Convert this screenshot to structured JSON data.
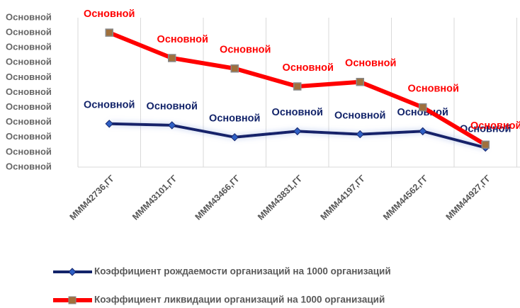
{
  "chart_data": {
    "type": "line",
    "categories": [
      "MMM42736,ГГ",
      "MMM43101,ГГ",
      "MMM43466,ГГ",
      "MMM43831,ГГ",
      "MMM44197,ГГ",
      "MMM44562,ГГ",
      "MMM44927,ГГ"
    ],
    "series": [
      {
        "name": "Коэффициент рождаемости организаций на 1000 организаций",
        "color": "#13246a",
        "marker_color": "#2f5fc4",
        "marker": "diamond",
        "values": [
          2.9,
          2.8,
          2.0,
          2.4,
          2.2,
          2.4,
          1.3
        ],
        "value_labels": [
          "Основной",
          "Основной",
          "Основной",
          "Основной",
          "Основной",
          "Основной",
          "Основной"
        ]
      },
      {
        "name": "Коэффициент ликвидации организаций на 1000 организаций",
        "color": "#ff0000",
        "marker_color": "#a0703c",
        "marker": "square",
        "values": [
          9.0,
          7.3,
          6.6,
          5.4,
          5.7,
          4.0,
          1.5
        ],
        "value_labels": [
          "Основной",
          "Основной",
          "Основной",
          "Основной",
          "Основной",
          "Основной",
          "Основной"
        ]
      }
    ],
    "ylim": [
      0,
      10
    ],
    "yticks": [
      {
        "value": 0,
        "label": "Основной"
      },
      {
        "value": 1,
        "label": "Основной"
      },
      {
        "value": 2,
        "label": "Основной"
      },
      {
        "value": 3,
        "label": "Основной"
      },
      {
        "value": 4,
        "label": "Основной"
      },
      {
        "value": 5,
        "label": "Основной"
      },
      {
        "value": 6,
        "label": "Основной"
      },
      {
        "value": 7,
        "label": "Основной"
      },
      {
        "value": 8,
        "label": "Основной"
      },
      {
        "value": 9,
        "label": "Основной"
      },
      {
        "value": 10,
        "label": "Основной"
      }
    ],
    "grid": false
  }
}
